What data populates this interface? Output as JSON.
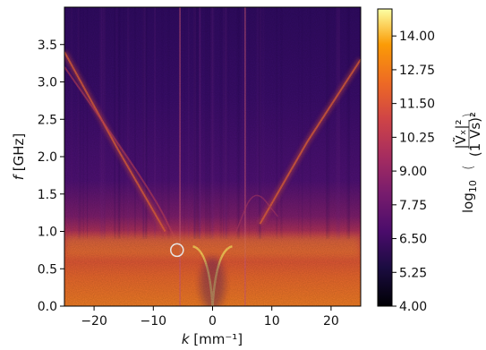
{
  "chart_data": {
    "type": "heatmap",
    "title": "",
    "xlabel_var": "k",
    "xlabel_unit": " [mm⁻¹]",
    "ylabel_var": "f",
    "ylabel_unit": " [GHz]",
    "xlim": [
      -25,
      25
    ],
    "ylim": [
      0,
      4.0
    ],
    "xticks": [
      -20,
      -10,
      0,
      10,
      20
    ],
    "xtick_labels": [
      "−20",
      "−10",
      "0",
      "10",
      "20"
    ],
    "yticks": [
      0.0,
      0.5,
      1.0,
      1.5,
      2.0,
      2.5,
      3.0,
      3.5
    ],
    "ytick_labels": [
      "0.0",
      "0.5",
      "1.0",
      "1.5",
      "2.0",
      "2.5",
      "3.0",
      "3.5"
    ],
    "colorbar": {
      "colormap": "inferno",
      "range": [
        4.0,
        15.0
      ],
      "ticks": [
        4.0,
        5.25,
        6.5,
        7.75,
        9.0,
        10.25,
        11.5,
        12.75,
        14.0
      ],
      "tick_labels": [
        "4.00",
        "5.25",
        "6.50",
        "7.75",
        "9.00",
        "10.25",
        "11.50",
        "12.75",
        "14.00"
      ],
      "label_prefix": "log",
      "label_sub": "10",
      "label_num": "|Ṽₓ|²",
      "label_den": "(1 Vs)²"
    },
    "features": {
      "flat_band_f": 0.8,
      "left_upper_branch": [
        [
          -25,
          3.4
        ],
        [
          -16,
          2.1
        ],
        [
          -8,
          1.0
        ]
      ],
      "right_upper_branch": [
        [
          8,
          1.1
        ],
        [
          16,
          2.2
        ],
        [
          25,
          3.3
        ]
      ],
      "curved_branch": [
        [
          -25,
          3.2
        ],
        [
          -10,
          1.5
        ],
        [
          -6,
          0.85
        ]
      ],
      "arc_right": [
        [
          4,
          1.0
        ],
        [
          7,
          1.6
        ],
        [
          11,
          1.2
        ]
      ],
      "vertical_lines_k": [
        -5.5,
        5.5
      ],
      "central_dip_k": 0,
      "marker": {
        "k": -6,
        "f": 0.75
      }
    }
  }
}
